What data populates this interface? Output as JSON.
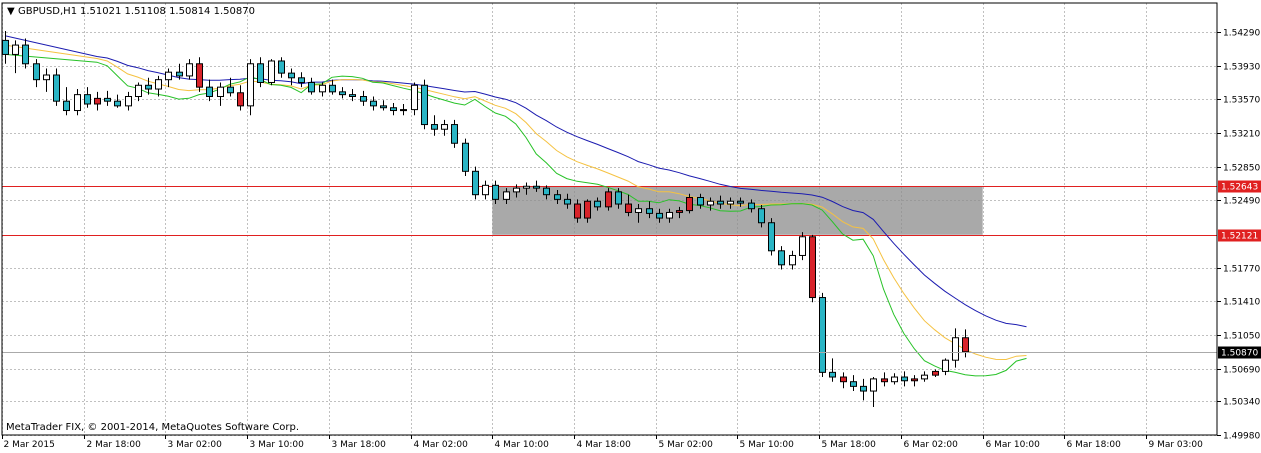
{
  "window": {
    "symbol_label": "GBPUSD,H1",
    "ohlc_label": "1.51021 1.51108 1.50814 1.50870",
    "copyright": "MetaTrader FIX, © 2001-2014, MetaQuotes Software Corp."
  },
  "colors": {
    "bull_body": "#ffffff",
    "bear_body": "#2ab5c5",
    "red_body": "#d8232a",
    "ma_blue": "#1c1cb0",
    "ma_orange": "#f5c242",
    "ma_green": "#27c227",
    "level_line": "#e02020",
    "zone_fill": "#8c8c8c",
    "grid": "#c0c0c0"
  },
  "chart_data": {
    "type": "candlestick",
    "symbol": "GBPUSD",
    "timeframe": "H1",
    "y_ticks": [
      "1.54290",
      "1.53930",
      "1.53570",
      "1.53210",
      "1.52850",
      "1.52490",
      "1.51770",
      "1.51410",
      "1.51050",
      "1.50690",
      "1.50340",
      "1.49980"
    ],
    "x_ticks": [
      "2 Mar 2015",
      "2 Mar 18:00",
      "3 Mar 02:00",
      "3 Mar 10:00",
      "3 Mar 18:00",
      "4 Mar 02:00",
      "4 Mar 10:00",
      "4 Mar 18:00",
      "5 Mar 02:00",
      "5 Mar 10:00",
      "5 Mar 18:00",
      "6 Mar 02:00",
      "6 Mar 10:00",
      "6 Mar 18:00",
      "9 Mar 03:00"
    ],
    "horizontal_levels": [
      {
        "value": 1.52643,
        "label": "1.52643"
      },
      {
        "value": 1.52121,
        "label": "1.52121"
      }
    ],
    "current_price": {
      "value": 1.5087,
      "label": "1.50870"
    },
    "zone": {
      "from": "4 Mar 10:00",
      "to": "6 Mar 10:00",
      "high": 1.52643,
      "low": 1.52121
    },
    "ylim": [
      1.4998,
      1.546
    ],
    "candles": [
      [
        1.542,
        1.543,
        1.5395,
        1.5405
      ],
      [
        1.5405,
        1.542,
        1.5385,
        1.5415
      ],
      [
        1.5415,
        1.5422,
        1.539,
        1.5395
      ],
      [
        1.5395,
        1.54,
        1.537,
        1.5378
      ],
      [
        1.5378,
        1.539,
        1.5365,
        1.5383
      ],
      [
        1.5383,
        1.539,
        1.535,
        1.5355
      ],
      [
        1.5355,
        1.537,
        1.534,
        1.5345
      ],
      [
        1.5345,
        1.5368,
        1.534,
        1.5362
      ],
      [
        1.5362,
        1.537,
        1.5348,
        1.5352
      ],
      [
        1.5352,
        1.5365,
        1.5345,
        1.5358
      ],
      [
        1.5358,
        1.5366,
        1.535,
        1.5355
      ],
      [
        1.5355,
        1.5362,
        1.5348,
        1.535
      ],
      [
        1.535,
        1.5365,
        1.5345,
        1.536
      ],
      [
        1.536,
        1.5375,
        1.5355,
        1.5372
      ],
      [
        1.5372,
        1.538,
        1.5362,
        1.5368
      ],
      [
        1.5368,
        1.5382,
        1.536,
        1.5378
      ],
      [
        1.5378,
        1.539,
        1.537,
        1.5386
      ],
      [
        1.5386,
        1.5395,
        1.5378,
        1.5382
      ],
      [
        1.5382,
        1.54,
        1.5378,
        1.5395
      ],
      [
        1.5395,
        1.5402,
        1.5365,
        1.537
      ],
      [
        1.537,
        1.5378,
        1.5355,
        1.536
      ],
      [
        1.536,
        1.5375,
        1.535,
        1.537
      ],
      [
        1.537,
        1.538,
        1.536,
        1.5364
      ],
      [
        1.5364,
        1.5372,
        1.5345,
        1.535
      ],
      [
        1.535,
        1.54,
        1.534,
        1.5395
      ],
      [
        1.5395,
        1.5402,
        1.537,
        1.5375
      ],
      [
        1.5375,
        1.54,
        1.5372,
        1.5398
      ],
      [
        1.5398,
        1.5402,
        1.538,
        1.5385
      ],
      [
        1.5385,
        1.539,
        1.5372,
        1.538
      ],
      [
        1.538,
        1.5386,
        1.537,
        1.5375
      ],
      [
        1.5375,
        1.538,
        1.5362,
        1.5365
      ],
      [
        1.5365,
        1.5375,
        1.536,
        1.5372
      ],
      [
        1.5372,
        1.5378,
        1.5362,
        1.5365
      ],
      [
        1.5365,
        1.537,
        1.5358,
        1.5362
      ],
      [
        1.5362,
        1.5368,
        1.5355,
        1.536
      ],
      [
        1.536,
        1.5366,
        1.535,
        1.5355
      ],
      [
        1.5355,
        1.536,
        1.5345,
        1.535
      ],
      [
        1.535,
        1.5356,
        1.5345,
        1.5348
      ],
      [
        1.5348,
        1.5353,
        1.534,
        1.5345
      ],
      [
        1.5345,
        1.5352,
        1.534,
        1.5346
      ],
      [
        1.5346,
        1.5375,
        1.534,
        1.5372
      ],
      [
        1.5372,
        1.5378,
        1.5325,
        1.533
      ],
      [
        1.533,
        1.534,
        1.5318,
        1.5325
      ],
      [
        1.5325,
        1.5335,
        1.5318,
        1.533
      ],
      [
        1.533,
        1.5335,
        1.5305,
        1.531
      ],
      [
        1.531,
        1.5315,
        1.5275,
        1.528
      ],
      [
        1.528,
        1.5285,
        1.525,
        1.5255
      ],
      [
        1.5255,
        1.527,
        1.525,
        1.5265
      ],
      [
        1.5265,
        1.527,
        1.5245,
        1.525
      ],
      [
        1.525,
        1.5262,
        1.5245,
        1.5258
      ],
      [
        1.5258,
        1.5266,
        1.5252,
        1.5262
      ],
      [
        1.5262,
        1.5268,
        1.5255,
        1.5264
      ],
      [
        1.5264,
        1.527,
        1.5258,
        1.5262
      ],
      [
        1.5262,
        1.5265,
        1.525,
        1.5255
      ],
      [
        1.5255,
        1.526,
        1.5245,
        1.525
      ],
      [
        1.525,
        1.5256,
        1.524,
        1.5245
      ],
      [
        1.5245,
        1.525,
        1.5225,
        1.523
      ],
      [
        1.523,
        1.525,
        1.5225,
        1.5248
      ],
      [
        1.5248,
        1.5252,
        1.5238,
        1.5242
      ],
      [
        1.5242,
        1.5262,
        1.5238,
        1.5258
      ],
      [
        1.5258,
        1.5262,
        1.524,
        1.5245
      ],
      [
        1.5245,
        1.5255,
        1.5232,
        1.5236
      ],
      [
        1.5236,
        1.5245,
        1.5225,
        1.524
      ],
      [
        1.524,
        1.5248,
        1.523,
        1.5235
      ],
      [
        1.5235,
        1.524,
        1.5225,
        1.523
      ],
      [
        1.523,
        1.524,
        1.5225,
        1.5236
      ],
      [
        1.5236,
        1.5242,
        1.523,
        1.5238
      ],
      [
        1.5238,
        1.5256,
        1.5235,
        1.5252
      ],
      [
        1.5252,
        1.5256,
        1.524,
        1.5244
      ],
      [
        1.5244,
        1.5252,
        1.5238,
        1.5248
      ],
      [
        1.5248,
        1.5254,
        1.524,
        1.5245
      ],
      [
        1.5245,
        1.5252,
        1.524,
        1.5248
      ],
      [
        1.5248,
        1.5252,
        1.5242,
        1.5246
      ],
      [
        1.5246,
        1.525,
        1.5236,
        1.524
      ],
      [
        1.524,
        1.5244,
        1.522,
        1.5225
      ],
      [
        1.5225,
        1.523,
        1.519,
        1.5195
      ],
      [
        1.5195,
        1.52,
        1.5175,
        1.518
      ],
      [
        1.518,
        1.5195,
        1.5175,
        1.519
      ],
      [
        1.519,
        1.5215,
        1.5185,
        1.521
      ],
      [
        1.521,
        1.5212,
        1.514,
        1.5145
      ],
      [
        1.5145,
        1.515,
        1.506,
        1.5065
      ],
      [
        1.5065,
        1.508,
        1.5055,
        1.506
      ],
      [
        1.506,
        1.5065,
        1.5048,
        1.5055
      ],
      [
        1.5055,
        1.5062,
        1.5045,
        1.505
      ],
      [
        1.505,
        1.5058,
        1.5035,
        1.5045
      ],
      [
        1.5045,
        1.506,
        1.5028,
        1.5058
      ],
      [
        1.5058,
        1.5065,
        1.505,
        1.5055
      ],
      [
        1.5055,
        1.5064,
        1.5052,
        1.506
      ],
      [
        1.506,
        1.5066,
        1.505,
        1.5056
      ],
      [
        1.5056,
        1.5062,
        1.505,
        1.5058
      ],
      [
        1.5058,
        1.5066,
        1.5055,
        1.5062
      ],
      [
        1.5062,
        1.5068,
        1.506,
        1.5066
      ],
      [
        1.5066,
        1.508,
        1.5062,
        1.5078
      ],
      [
        1.5078,
        1.5112,
        1.507,
        1.5102
      ],
      [
        1.5102,
        1.5111,
        1.5081,
        1.5087
      ]
    ],
    "ma_lengths": [
      24,
      12,
      6
    ]
  }
}
